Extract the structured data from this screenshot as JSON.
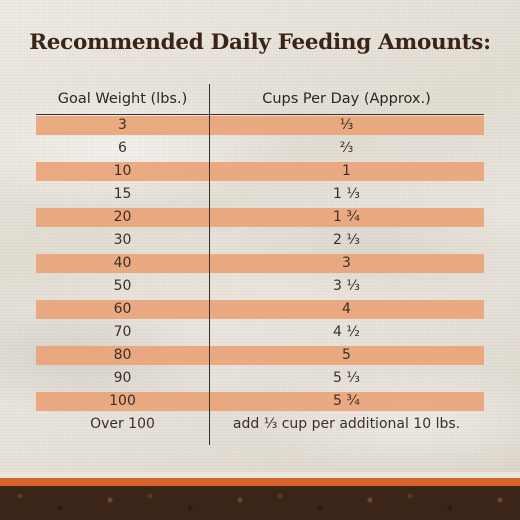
{
  "title": "Recommended Daily Feeding Amounts:",
  "table": {
    "headers": [
      "Goal Weight (lbs.)",
      "Cups Per Day (Approx.)"
    ],
    "rows": [
      {
        "weight": "3",
        "cups": "⅓"
      },
      {
        "weight": "6",
        "cups": "⅔"
      },
      {
        "weight": "10",
        "cups": "1"
      },
      {
        "weight": "15",
        "cups": "1 ⅓"
      },
      {
        "weight": "20",
        "cups": "1 ¾"
      },
      {
        "weight": "30",
        "cups": "2 ⅓"
      },
      {
        "weight": "40",
        "cups": "3"
      },
      {
        "weight": "50",
        "cups": "3 ⅓"
      },
      {
        "weight": "60",
        "cups": "4"
      },
      {
        "weight": "70",
        "cups": "4 ½"
      },
      {
        "weight": "80",
        "cups": "5"
      },
      {
        "weight": "90",
        "cups": "5 ⅓"
      },
      {
        "weight": "100",
        "cups": "5 ¾"
      },
      {
        "weight": "Over 100",
        "cups": "add ⅓ cup per additional 10 lbs."
      }
    ]
  },
  "colors": {
    "title": "#3b2415",
    "row_shade": "#e9a47a",
    "accent_band": "#d8612c",
    "soil": "#3a2518",
    "background": "#e9e5dd"
  }
}
